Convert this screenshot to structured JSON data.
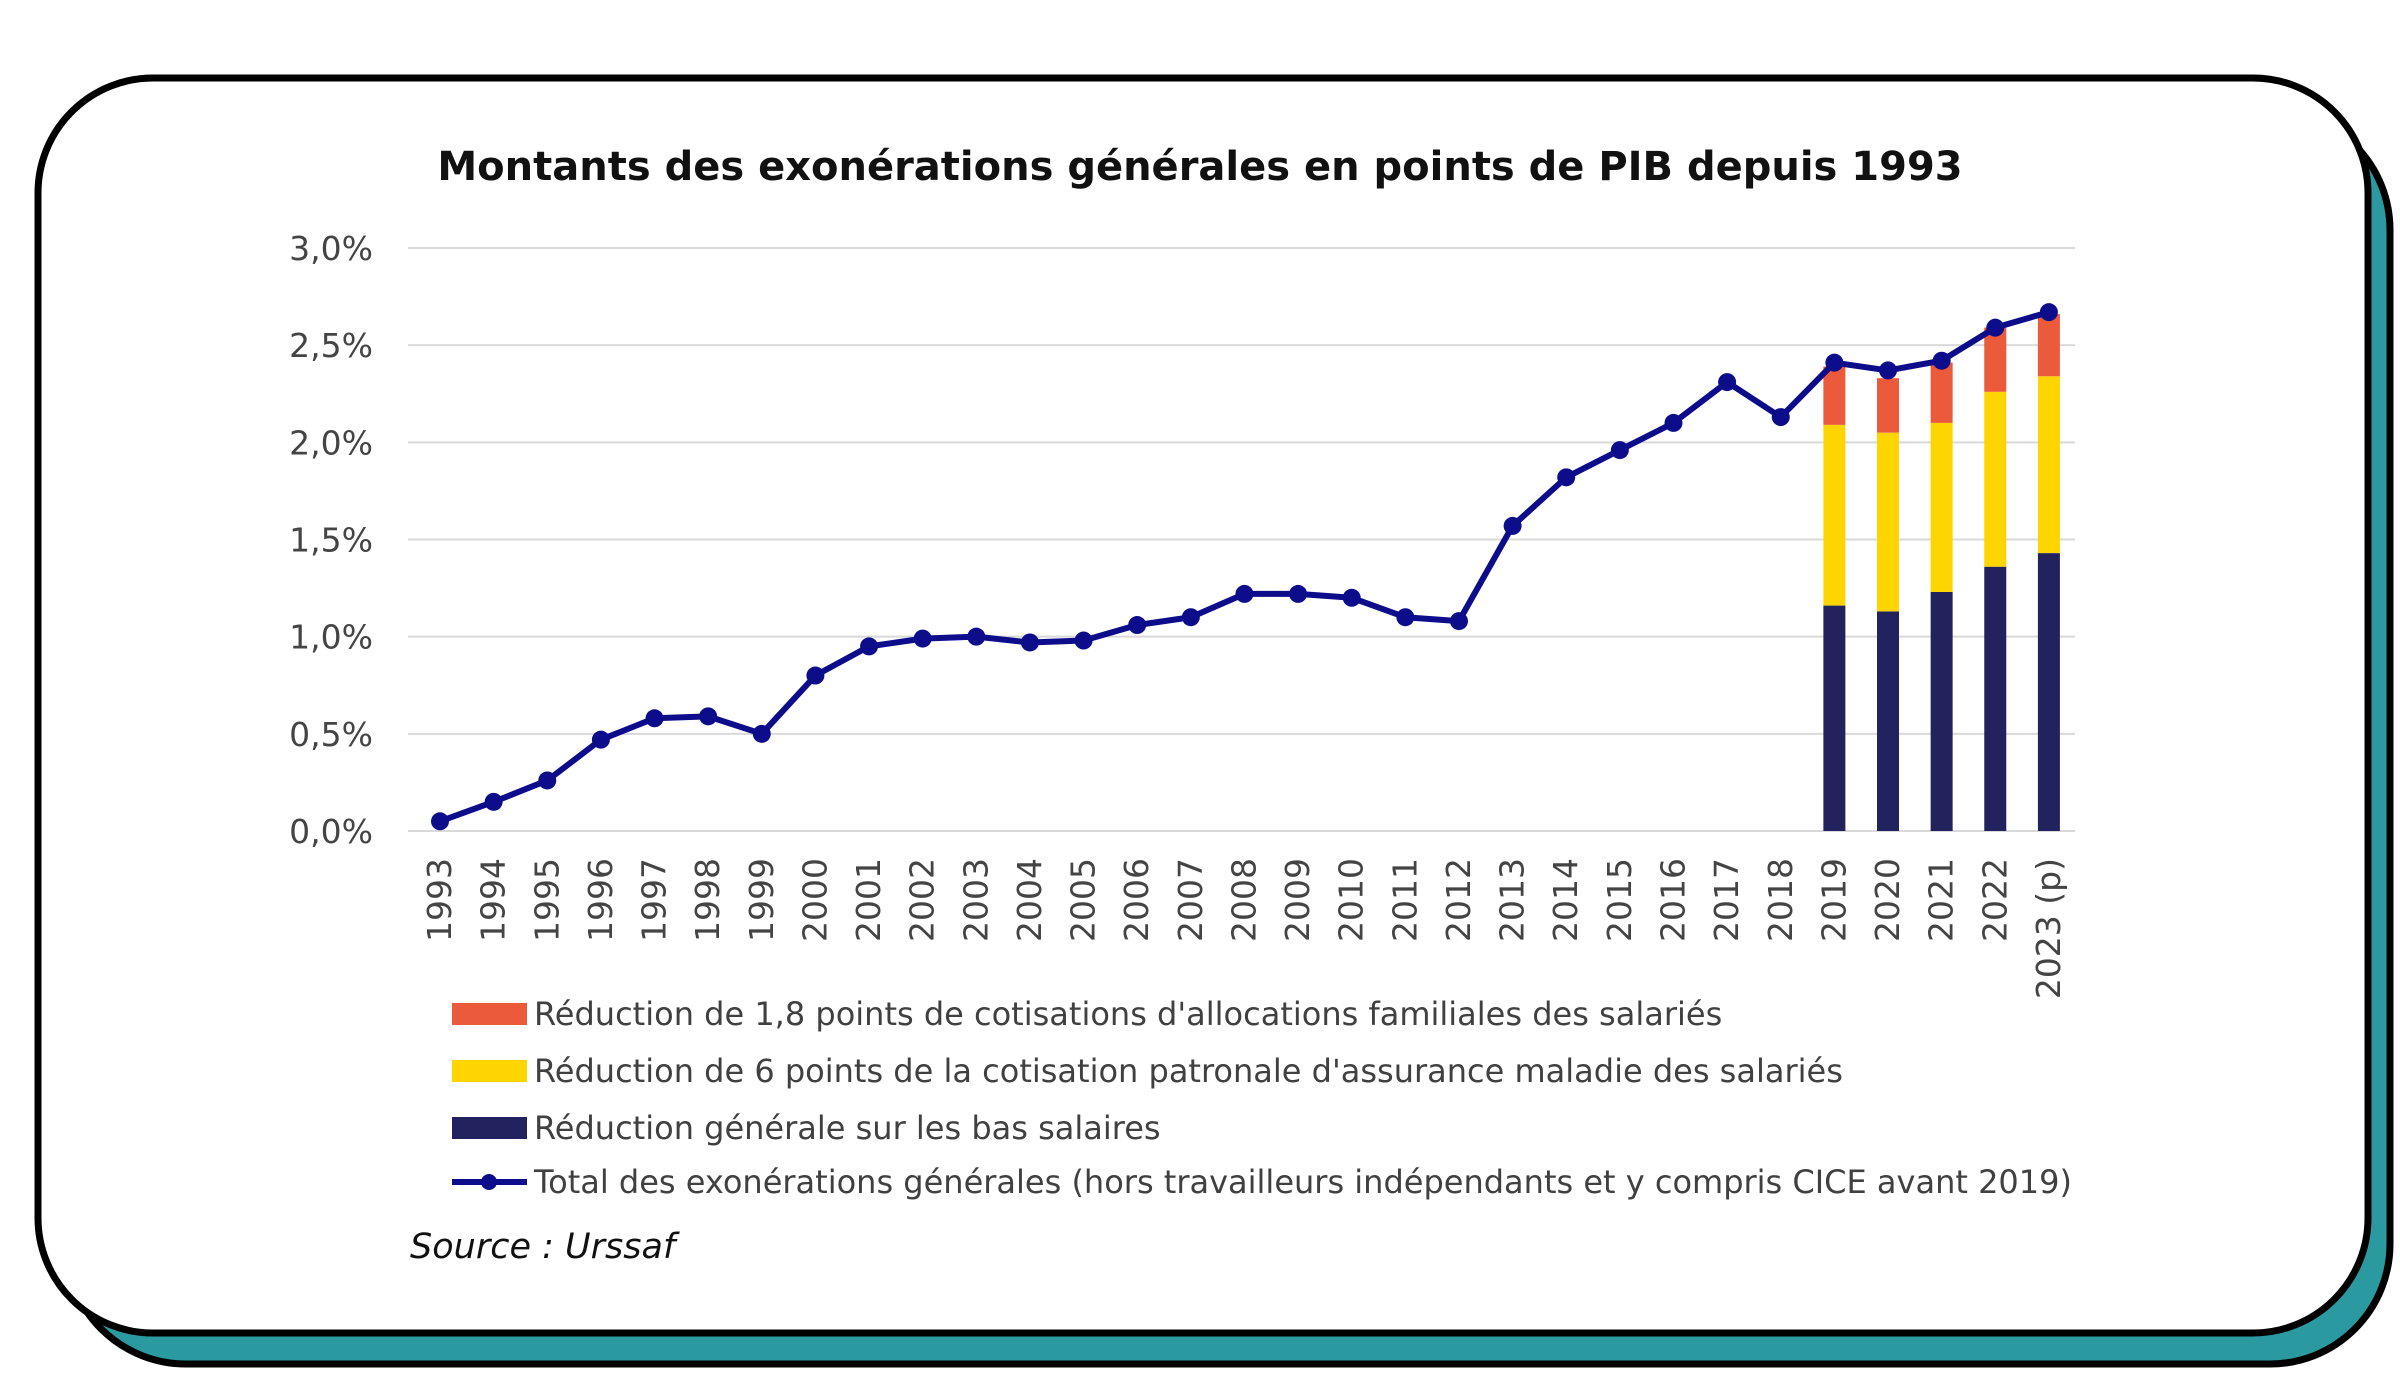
{
  "colors": {
    "card_shadow": "#2a9aa0",
    "card_border": "#000000",
    "total_line": "#0d0d8c",
    "bas_salaires": "#22225e",
    "maladie": "#ffd500",
    "allocations": "#ec5a3c",
    "grid": "#d9d9d9"
  },
  "chart_data": {
    "type": "bar+line",
    "title": "Montants des exonérations générales en points de PIB depuis 1993",
    "categories": [
      "1993",
      "1994",
      "1995",
      "1996",
      "1997",
      "1998",
      "1999",
      "2000",
      "2001",
      "2002",
      "2003",
      "2004",
      "2005",
      "2006",
      "2007",
      "2008",
      "2009",
      "2010",
      "2011",
      "2012",
      "2013",
      "2014",
      "2015",
      "2016",
      "2017",
      "2018",
      "2019",
      "2020",
      "2021",
      "2022",
      "2023 (p)"
    ],
    "ylim": [
      0,
      3.0
    ],
    "yticks": [
      "0,0%",
      "0,5%",
      "1,0%",
      "1,5%",
      "2,0%",
      "2,5%",
      "3,0%"
    ],
    "grid": true,
    "legend_position": "bottom",
    "series": [
      {
        "name": "Réduction de 1,8 points de cotisations d'allocations familiales des salariés",
        "kind": "bar",
        "values": [
          null,
          null,
          null,
          null,
          null,
          null,
          null,
          null,
          null,
          null,
          null,
          null,
          null,
          null,
          null,
          null,
          null,
          null,
          null,
          null,
          null,
          null,
          null,
          null,
          null,
          null,
          0.3,
          0.28,
          0.31,
          0.33,
          0.32
        ]
      },
      {
        "name": "Réduction de 6 points de la cotisation patronale d'assurance maladie des salariés",
        "kind": "bar",
        "values": [
          null,
          null,
          null,
          null,
          null,
          null,
          null,
          null,
          null,
          null,
          null,
          null,
          null,
          null,
          null,
          null,
          null,
          null,
          null,
          null,
          null,
          null,
          null,
          null,
          null,
          null,
          0.93,
          0.92,
          0.87,
          0.9,
          0.91
        ]
      },
      {
        "name": "Réduction générale sur les bas salaires",
        "kind": "bar",
        "values": [
          null,
          null,
          null,
          null,
          null,
          null,
          null,
          null,
          null,
          null,
          null,
          null,
          null,
          null,
          null,
          null,
          null,
          null,
          null,
          null,
          null,
          null,
          null,
          null,
          null,
          null,
          1.16,
          1.13,
          1.23,
          1.36,
          1.43
        ]
      },
      {
        "name": "Total des exonérations générales (hors travailleurs indépendants et y compris CICE avant 2019)",
        "kind": "line",
        "values": [
          0.05,
          0.15,
          0.26,
          0.47,
          0.58,
          0.59,
          0.5,
          0.8,
          0.95,
          0.99,
          1.0,
          0.97,
          0.98,
          1.06,
          1.1,
          1.22,
          1.22,
          1.2,
          1.1,
          1.08,
          1.57,
          1.82,
          1.96,
          2.1,
          2.31,
          2.13,
          2.41,
          2.37,
          2.42,
          2.59,
          2.67
        ]
      }
    ],
    "source": "Source : Urssaf"
  }
}
